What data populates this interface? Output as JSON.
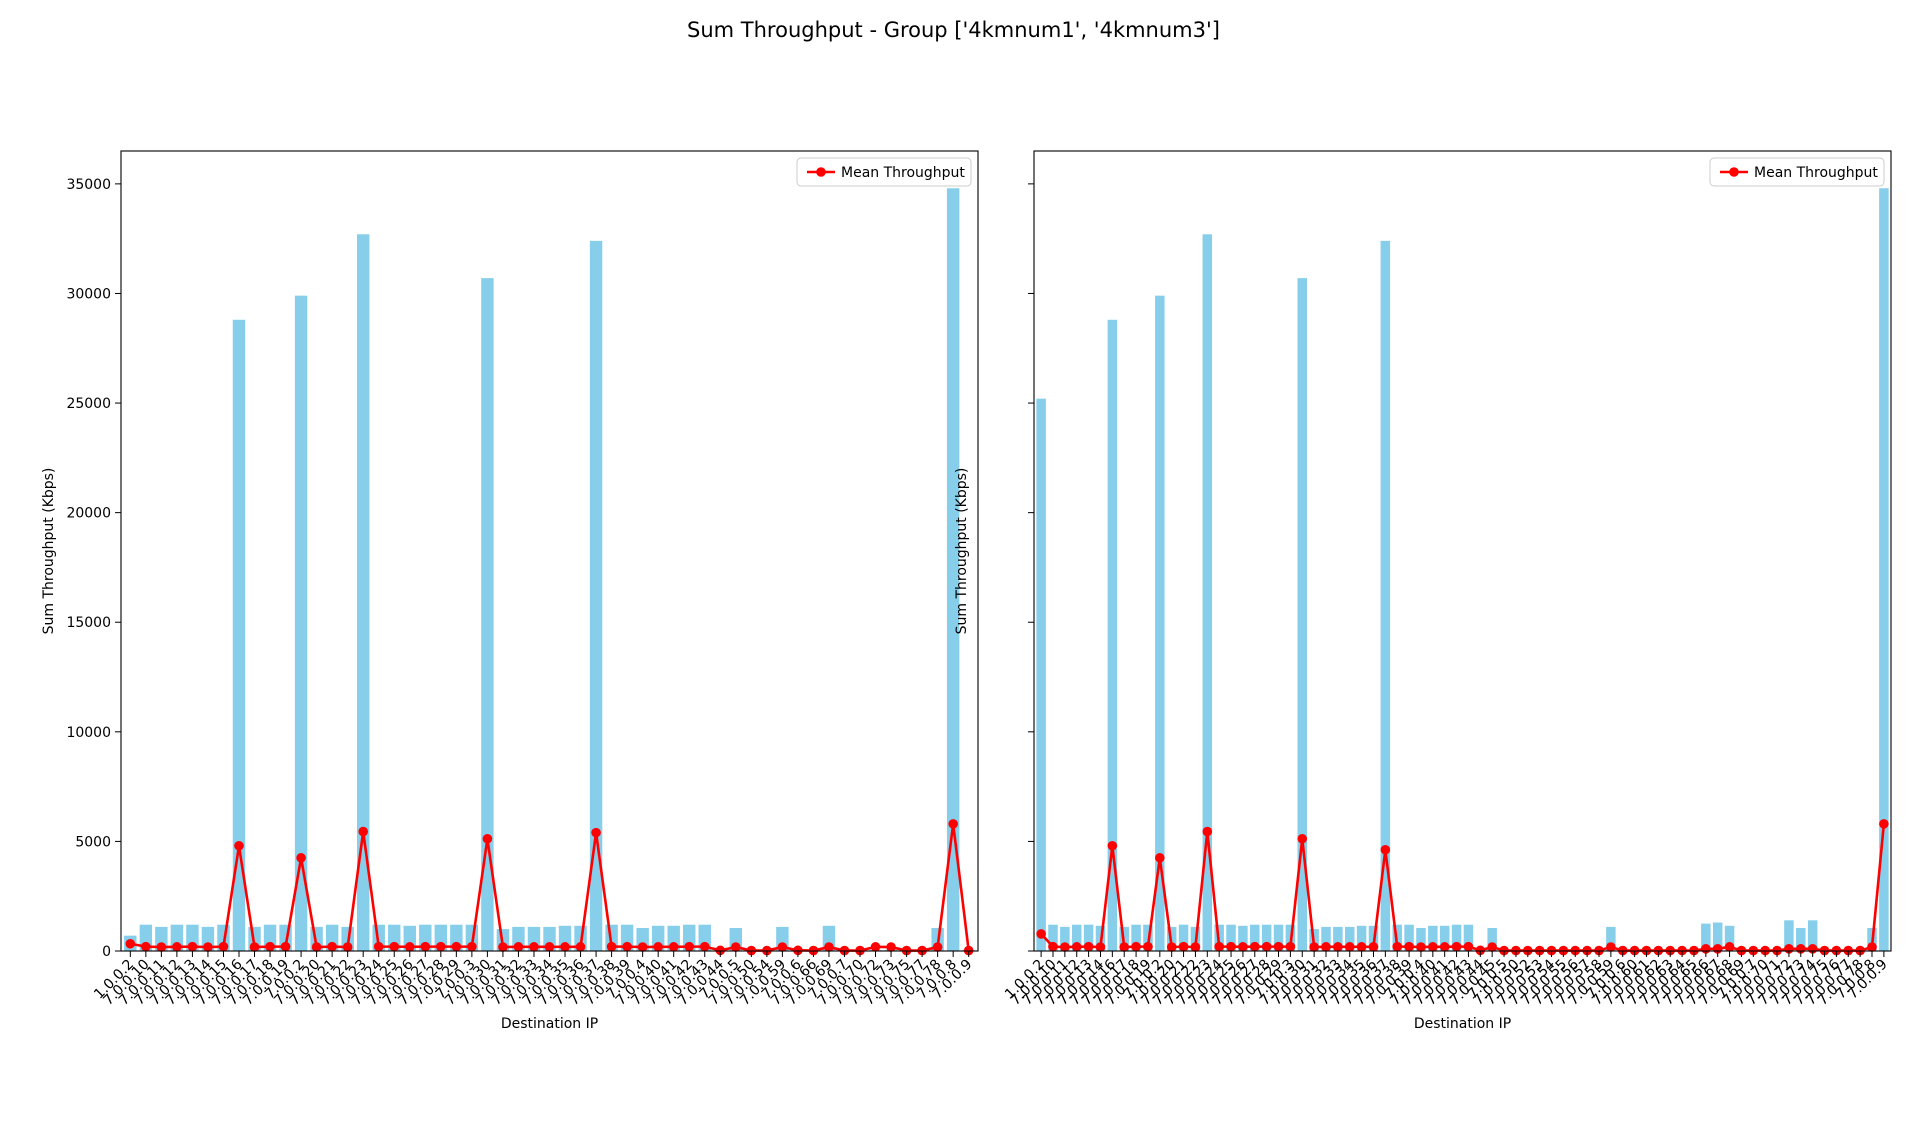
{
  "figure": {
    "suptitle": "Sum Throughput - Group ['4kmnum1', '4kmnum3']",
    "colors": {
      "bar": "#87ceeb",
      "line": "#ff0000",
      "marker": "#ff0000"
    }
  },
  "chart_data": [
    {
      "type": "bar",
      "title": "",
      "xlabel": "Destination IP",
      "ylabel": "Sum Throughput (Kbps)",
      "ylim": [
        0,
        36500
      ],
      "yticks": [
        0,
        5000,
        10000,
        15000,
        20000,
        25000,
        30000,
        35000
      ],
      "legend": {
        "position": "upper-right",
        "entries": [
          "Mean Throughput"
        ]
      },
      "categories": [
        "1.0.0.2",
        "7.0.0.10",
        "7.0.0.11",
        "7.0.0.12",
        "7.0.0.13",
        "7.0.0.14",
        "7.0.0.15",
        "7.0.0.16",
        "7.0.0.17",
        "7.0.0.18",
        "7.0.0.19",
        "7.0.0.2",
        "7.0.0.20",
        "7.0.0.21",
        "7.0.0.22",
        "7.0.0.23",
        "7.0.0.24",
        "7.0.0.25",
        "7.0.0.26",
        "7.0.0.27",
        "7.0.0.28",
        "7.0.0.29",
        "7.0.0.3",
        "7.0.0.30",
        "7.0.0.31",
        "7.0.0.32",
        "7.0.0.33",
        "7.0.0.34",
        "7.0.0.35",
        "7.0.0.36",
        "7.0.0.37",
        "7.0.0.38",
        "7.0.0.39",
        "7.0.0.4",
        "7.0.0.40",
        "7.0.0.41",
        "7.0.0.42",
        "7.0.0.43",
        "7.0.0.44",
        "7.0.0.5",
        "7.0.0.50",
        "7.0.0.54",
        "7.0.0.59",
        "7.0.0.6",
        "7.0.0.66",
        "7.0.0.69",
        "7.0.0.7",
        "7.0.0.70",
        "7.0.0.72",
        "7.0.0.73",
        "7.0.0.75",
        "7.0.0.77",
        "7.0.0.78",
        "7.0.0.8",
        "7.0.0.9"
      ],
      "series": [
        {
          "kind": "bar",
          "values": [
            700,
            1200,
            1100,
            1200,
            1200,
            1100,
            1200,
            28800,
            1100,
            1200,
            1200,
            29900,
            1100,
            1200,
            1100,
            32700,
            1200,
            1200,
            1150,
            1200,
            1200,
            1200,
            1200,
            30700,
            1000,
            1100,
            1100,
            1100,
            1150,
            1150,
            32400,
            1200,
            1200,
            1050,
            1150,
            1150,
            1200,
            1200,
            100,
            1050,
            50,
            50,
            1100,
            100,
            50,
            1150,
            50,
            50,
            50,
            50,
            50,
            50,
            1050,
            34800,
            50
          ]
        },
        {
          "kind": "line",
          "name": "Mean Throughput",
          "values": [
            330,
            200,
            180,
            190,
            200,
            180,
            200,
            4800,
            180,
            200,
            200,
            4250,
            180,
            200,
            180,
            5450,
            200,
            200,
            190,
            200,
            200,
            200,
            200,
            5120,
            180,
            190,
            190,
            190,
            190,
            190,
            5400,
            200,
            200,
            180,
            190,
            190,
            200,
            200,
            30,
            180,
            20,
            20,
            180,
            30,
            20,
            180,
            20,
            20,
            190,
            180,
            20,
            20,
            180,
            5800,
            20
          ]
        }
      ]
    },
    {
      "type": "bar",
      "title": "",
      "xlabel": "Destination IP",
      "ylabel": "Sum Throughput (Kbps)",
      "ylim": [
        0,
        36500
      ],
      "yticks": [
        0,
        5000,
        10000,
        15000,
        20000,
        25000,
        30000,
        35000
      ],
      "legend": {
        "position": "upper-right",
        "entries": [
          "Mean Throughput"
        ]
      },
      "categories": [
        "1.0.0.2",
        "7.0.0.10",
        "7.0.0.11",
        "7.0.0.12",
        "7.0.0.13",
        "7.0.0.14",
        "7.0.0.16",
        "7.0.0.17",
        "7.0.0.18",
        "7.0.0.19",
        "7.0.0.2",
        "7.0.0.20",
        "7.0.0.21",
        "7.0.0.22",
        "7.0.0.23",
        "7.0.0.24",
        "7.0.0.25",
        "7.0.0.26",
        "7.0.0.27",
        "7.0.0.28",
        "7.0.0.29",
        "7.0.0.3",
        "7.0.0.30",
        "7.0.0.31",
        "7.0.0.32",
        "7.0.0.33",
        "7.0.0.34",
        "7.0.0.35",
        "7.0.0.36",
        "7.0.0.37",
        "7.0.0.38",
        "7.0.0.39",
        "7.0.0.4",
        "7.0.0.40",
        "7.0.0.41",
        "7.0.0.42",
        "7.0.0.43",
        "7.0.0.44",
        "7.0.0.45",
        "7.0.0.5",
        "7.0.0.50",
        "7.0.0.52",
        "7.0.0.53",
        "7.0.0.54",
        "7.0.0.55",
        "7.0.0.56",
        "7.0.0.57",
        "7.0.0.58",
        "7.0.0.59",
        "7.0.0.6",
        "7.0.0.60",
        "7.0.0.61",
        "7.0.0.62",
        "7.0.0.63",
        "7.0.0.64",
        "7.0.0.65",
        "7.0.0.66",
        "7.0.0.67",
        "7.0.0.68",
        "7.0.0.69",
        "7.0.0.7",
        "7.0.0.70",
        "7.0.0.71",
        "7.0.0.72",
        "7.0.0.73",
        "7.0.0.74",
        "7.0.0.75",
        "7.0.0.76",
        "7.0.0.77",
        "7.0.0.78",
        "7.0.0.8",
        "7.0.0.9"
      ],
      "series": [
        {
          "kind": "bar",
          "values": [
            25200,
            1200,
            1100,
            1200,
            1200,
            1150,
            28800,
            1100,
            1200,
            1200,
            29900,
            1100,
            1200,
            1100,
            32700,
            1200,
            1200,
            1150,
            1200,
            1200,
            1200,
            1200,
            30700,
            1000,
            1100,
            1100,
            1100,
            1150,
            1150,
            32400,
            1200,
            1200,
            1050,
            1150,
            1150,
            1200,
            1200,
            100,
            1050,
            50,
            50,
            50,
            50,
            50,
            50,
            50,
            50,
            50,
            1100,
            50,
            50,
            50,
            50,
            50,
            50,
            50,
            1250,
            1300,
            1150,
            50,
            50,
            50,
            50,
            1400,
            1050,
            1400,
            50,
            50,
            50,
            50,
            1050,
            34800
          ]
        },
        {
          "kind": "line",
          "name": "Mean Throughput",
          "values": [
            780,
            200,
            180,
            190,
            200,
            180,
            4800,
            180,
            200,
            200,
            4250,
            180,
            200,
            180,
            5450,
            200,
            200,
            190,
            200,
            200,
            200,
            200,
            5120,
            180,
            190,
            190,
            190,
            190,
            190,
            4620,
            200,
            200,
            180,
            190,
            190,
            200,
            200,
            30,
            180,
            20,
            20,
            20,
            20,
            20,
            20,
            20,
            20,
            20,
            180,
            20,
            20,
            20,
            20,
            20,
            20,
            20,
            100,
            100,
            190,
            20,
            20,
            20,
            20,
            100,
            100,
            100,
            20,
            20,
            20,
            20,
            180,
            5800
          ]
        }
      ]
    }
  ]
}
